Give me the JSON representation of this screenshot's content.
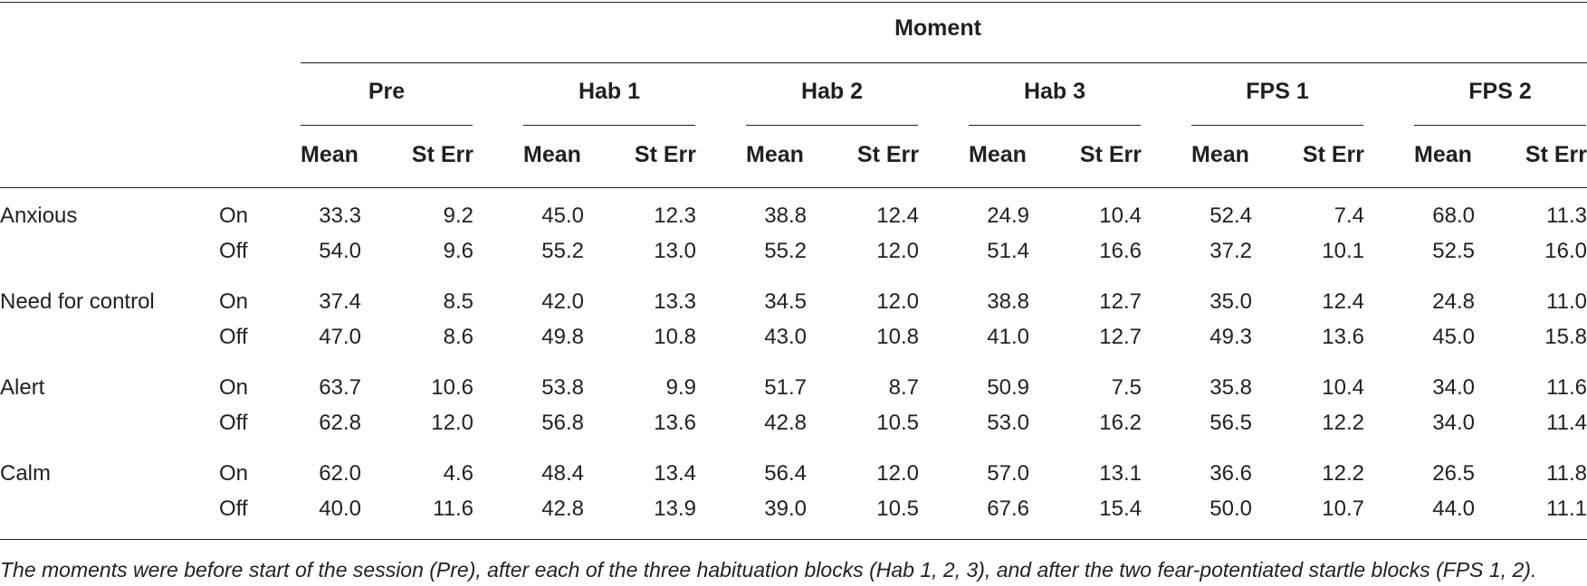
{
  "table": {
    "spanner": "Moment",
    "moments": [
      "Pre",
      "Hab 1",
      "Hab 2",
      "Hab 3",
      "FPS 1",
      "FPS 2"
    ],
    "mean_label": "Mean",
    "sterr_label": "St Err",
    "rows": [
      {
        "measure": "Anxious",
        "condition": "On",
        "cells": [
          [
            "33.3",
            "9.2"
          ],
          [
            "45.0",
            "12.3"
          ],
          [
            "38.8",
            "12.4"
          ],
          [
            "24.9",
            "10.4"
          ],
          [
            "52.4",
            "7.4"
          ],
          [
            "68.0",
            "11.3"
          ]
        ]
      },
      {
        "measure": "",
        "condition": "Off",
        "cells": [
          [
            "54.0",
            "9.6"
          ],
          [
            "55.2",
            "13.0"
          ],
          [
            "55.2",
            "12.0"
          ],
          [
            "51.4",
            "16.6"
          ],
          [
            "37.2",
            "10.1"
          ],
          [
            "52.5",
            "16.0"
          ]
        ]
      },
      {
        "measure": "Need for control",
        "condition": "On",
        "cells": [
          [
            "37.4",
            "8.5"
          ],
          [
            "42.0",
            "13.3"
          ],
          [
            "34.5",
            "12.0"
          ],
          [
            "38.8",
            "12.7"
          ],
          [
            "35.0",
            "12.4"
          ],
          [
            "24.8",
            "11.0"
          ]
        ]
      },
      {
        "measure": "",
        "condition": "Off",
        "cells": [
          [
            "47.0",
            "8.6"
          ],
          [
            "49.8",
            "10.8"
          ],
          [
            "43.0",
            "10.8"
          ],
          [
            "41.0",
            "12.7"
          ],
          [
            "49.3",
            "13.6"
          ],
          [
            "45.0",
            "15.8"
          ]
        ]
      },
      {
        "measure": "Alert",
        "condition": "On",
        "cells": [
          [
            "63.7",
            "10.6"
          ],
          [
            "53.8",
            "9.9"
          ],
          [
            "51.7",
            "8.7"
          ],
          [
            "50.9",
            "7.5"
          ],
          [
            "35.8",
            "10.4"
          ],
          [
            "34.0",
            "11.6"
          ]
        ]
      },
      {
        "measure": "",
        "condition": "Off",
        "cells": [
          [
            "62.8",
            "12.0"
          ],
          [
            "56.8",
            "13.6"
          ],
          [
            "42.8",
            "10.5"
          ],
          [
            "53.0",
            "16.2"
          ],
          [
            "56.5",
            "12.2"
          ],
          [
            "34.0",
            "11.4"
          ]
        ]
      },
      {
        "measure": "Calm",
        "condition": "On",
        "cells": [
          [
            "62.0",
            "4.6"
          ],
          [
            "48.4",
            "13.4"
          ],
          [
            "56.4",
            "12.0"
          ],
          [
            "57.0",
            "13.1"
          ],
          [
            "36.6",
            "12.2"
          ],
          [
            "26.5",
            "11.8"
          ]
        ]
      },
      {
        "measure": "",
        "condition": "Off",
        "cells": [
          [
            "40.0",
            "11.6"
          ],
          [
            "42.8",
            "13.9"
          ],
          [
            "39.0",
            "10.5"
          ],
          [
            "67.6",
            "15.4"
          ],
          [
            "50.0",
            "10.7"
          ],
          [
            "44.0",
            "11.1"
          ]
        ]
      }
    ]
  },
  "footnote": "The moments were before start of the session (Pre), after each of the three habituation blocks (Hab 1, 2, 3), and after the two fear-potentiated startle blocks (FPS 1, 2)."
}
